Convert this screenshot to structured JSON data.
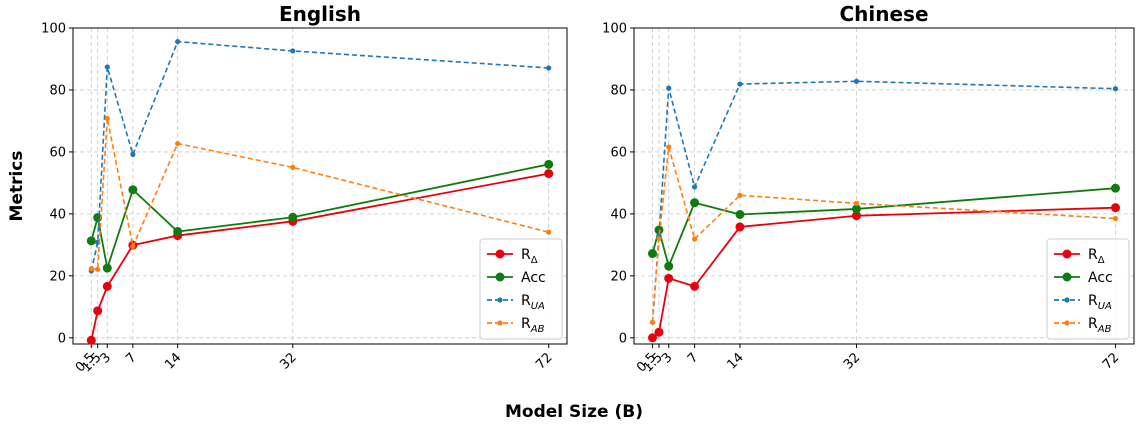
{
  "figure": {
    "ylabel": "Metrics",
    "xlabel": "Model Size (B)"
  },
  "colors": {
    "r_delta": "#e8000b",
    "acc": "#107c10",
    "r_ua": "#1f77b4",
    "r_ab": "#ff7f0e",
    "grid": "#c8c8c8"
  },
  "chart_data": [
    {
      "type": "line",
      "title": "English",
      "xlabel": "Model Size (B)",
      "ylabel": "Metrics",
      "x": [
        0.5,
        1.5,
        3,
        7,
        14,
        32,
        72
      ],
      "x_tick_labels": [
        "0.5",
        "1.5",
        "3",
        "7",
        "14",
        "32",
        "72"
      ],
      "y_ticks": [
        0,
        20,
        40,
        60,
        80,
        100
      ],
      "ylim": [
        -2,
        100
      ],
      "grid": true,
      "legend_position": "lower-right",
      "series": [
        {
          "name": "R_Δ",
          "label_main": "R",
          "label_sub": "Δ",
          "sub_italic": false,
          "style": "solid",
          "color_key": "r_delta",
          "values": [
            -0.8,
            8.7,
            16.6,
            29.9,
            33.0,
            37.6,
            53.0
          ]
        },
        {
          "name": "Acc",
          "label_main": "Acc",
          "label_sub": "",
          "sub_italic": false,
          "style": "solid",
          "color_key": "acc",
          "values": [
            31.3,
            38.8,
            22.5,
            47.8,
            34.3,
            38.9,
            56.0
          ]
        },
        {
          "name": "R_UA",
          "label_main": "R",
          "label_sub": "UA",
          "sub_italic": true,
          "style": "dashed",
          "color_key": "r_ua",
          "values": [
            21.6,
            30.8,
            87.4,
            59.2,
            95.6,
            92.6,
            87.1
          ]
        },
        {
          "name": "R_AB",
          "label_main": "R",
          "label_sub": "AB",
          "sub_italic": true,
          "style": "dashed",
          "color_key": "r_ab",
          "values": [
            22.3,
            22.1,
            70.8,
            29.5,
            62.7,
            55.0,
            34.1
          ]
        }
      ]
    },
    {
      "type": "line",
      "title": "Chinese",
      "xlabel": "Model Size (B)",
      "ylabel": "Metrics",
      "x": [
        0.5,
        1.5,
        3,
        7,
        14,
        32,
        72
      ],
      "x_tick_labels": [
        "0.5",
        "1.5",
        "3",
        "7",
        "14",
        "32",
        "72"
      ],
      "y_ticks": [
        0,
        20,
        40,
        60,
        80,
        100
      ],
      "ylim": [
        -2,
        100
      ],
      "grid": true,
      "legend_position": "lower-right",
      "series": [
        {
          "name": "R_Δ",
          "label_main": "R",
          "label_sub": "Δ",
          "sub_italic": false,
          "style": "solid",
          "color_key": "r_delta",
          "values": [
            0.0,
            1.8,
            19.2,
            16.6,
            35.8,
            39.4,
            42.0
          ]
        },
        {
          "name": "Acc",
          "label_main": "Acc",
          "label_sub": "",
          "sub_italic": false,
          "style": "solid",
          "color_key": "acc",
          "values": [
            27.2,
            34.8,
            23.1,
            43.6,
            39.8,
            41.6,
            48.3
          ]
        },
        {
          "name": "R_UA",
          "label_main": "R",
          "label_sub": "UA",
          "sub_italic": true,
          "style": "dashed",
          "color_key": "r_ua",
          "values": [
            5.0,
            33.0,
            80.6,
            48.7,
            81.9,
            82.8,
            80.4
          ]
        },
        {
          "name": "R_AB",
          "label_main": "R",
          "label_sub": "AB",
          "sub_italic": true,
          "style": "dashed",
          "color_key": "r_ab",
          "values": [
            5.0,
            32.0,
            61.6,
            31.9,
            46.0,
            43.4,
            38.5
          ]
        }
      ]
    }
  ]
}
